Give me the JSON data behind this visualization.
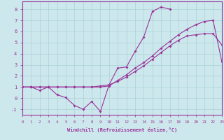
{
  "background_color": "#cce8ec",
  "grid_color": "#aad0d8",
  "line_color": "#993399",
  "xlabel": "Windchill (Refroidissement éolien,°C)",
  "xlim": [
    0,
    23
  ],
  "ylim": [
    -1.5,
    8.7
  ],
  "xticks": [
    0,
    1,
    2,
    3,
    4,
    5,
    6,
    7,
    8,
    9,
    10,
    11,
    12,
    13,
    14,
    15,
    16,
    17,
    18,
    19,
    20,
    21,
    22,
    23
  ],
  "yticks": [
    -1,
    0,
    1,
    2,
    3,
    4,
    5,
    6,
    7,
    8
  ],
  "line1_x": [
    0,
    1,
    2,
    3,
    4,
    5,
    6,
    7,
    8,
    9,
    10,
    11,
    12,
    13,
    14,
    15,
    16,
    17
  ],
  "line1_y": [
    1.0,
    1.0,
    0.7,
    1.0,
    0.3,
    0.05,
    -0.65,
    -1.0,
    -0.3,
    -1.2,
    1.2,
    2.7,
    2.8,
    4.2,
    5.5,
    7.8,
    8.2,
    8.0
  ],
  "line2_x": [
    0,
    1,
    2,
    3,
    4,
    5,
    6,
    7,
    8,
    9,
    10,
    11,
    12,
    13,
    14,
    15,
    16,
    17,
    18,
    19,
    20,
    21,
    22,
    23
  ],
  "line2_y": [
    1.0,
    1.0,
    1.0,
    1.0,
    1.0,
    1.0,
    1.0,
    1.0,
    1.0,
    1.0,
    1.1,
    1.6,
    2.1,
    2.7,
    3.2,
    3.8,
    4.5,
    5.1,
    5.7,
    6.2,
    6.6,
    6.9,
    7.0,
    3.3
  ],
  "line3_x": [
    0,
    1,
    2,
    3,
    4,
    5,
    6,
    7,
    8,
    9,
    10,
    11,
    12,
    13,
    14,
    15,
    16,
    17,
    18,
    19,
    20,
    21,
    22,
    23
  ],
  "line3_y": [
    1.0,
    1.0,
    1.0,
    1.0,
    1.0,
    1.0,
    1.0,
    1.0,
    1.0,
    1.1,
    1.2,
    1.5,
    1.9,
    2.4,
    2.9,
    3.5,
    4.1,
    4.7,
    5.2,
    5.6,
    5.7,
    5.8,
    5.8,
    4.8
  ]
}
